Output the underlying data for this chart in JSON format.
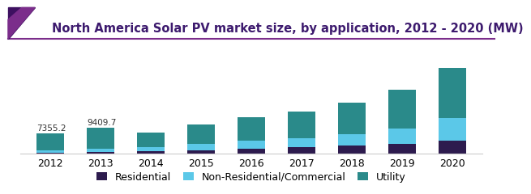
{
  "title": "North America Solar PV market size, by application, 2012 - 2020 (MW)",
  "years": [
    "2012",
    "2013",
    "2014",
    "2015",
    "2016",
    "2017",
    "2018",
    "2019",
    "2020"
  ],
  "residential": [
    420,
    750,
    950,
    1300,
    1800,
    2400,
    3000,
    3600,
    4800
  ],
  "non_residential": [
    800,
    1200,
    1500,
    2200,
    2800,
    3200,
    4000,
    5500,
    8000
  ],
  "utility": [
    6135.2,
    7459.7,
    5300,
    7000,
    8500,
    9500,
    11500,
    14000,
    18000
  ],
  "annotations": {
    "2012": "7355.2",
    "2013": "9409.7"
  },
  "colors": {
    "residential": "#2d1b4e",
    "non_residential": "#5bc8e8",
    "utility": "#2a8a8a"
  },
  "legend_labels": [
    "Residential",
    "Non-Residential/Commercial",
    "Utility"
  ],
  "title_color": "#3d1a6e",
  "accent_line_color": "#7b2d8b",
  "background_color": "#ffffff",
  "title_fontsize": 10.5,
  "tick_fontsize": 9,
  "legend_fontsize": 9
}
